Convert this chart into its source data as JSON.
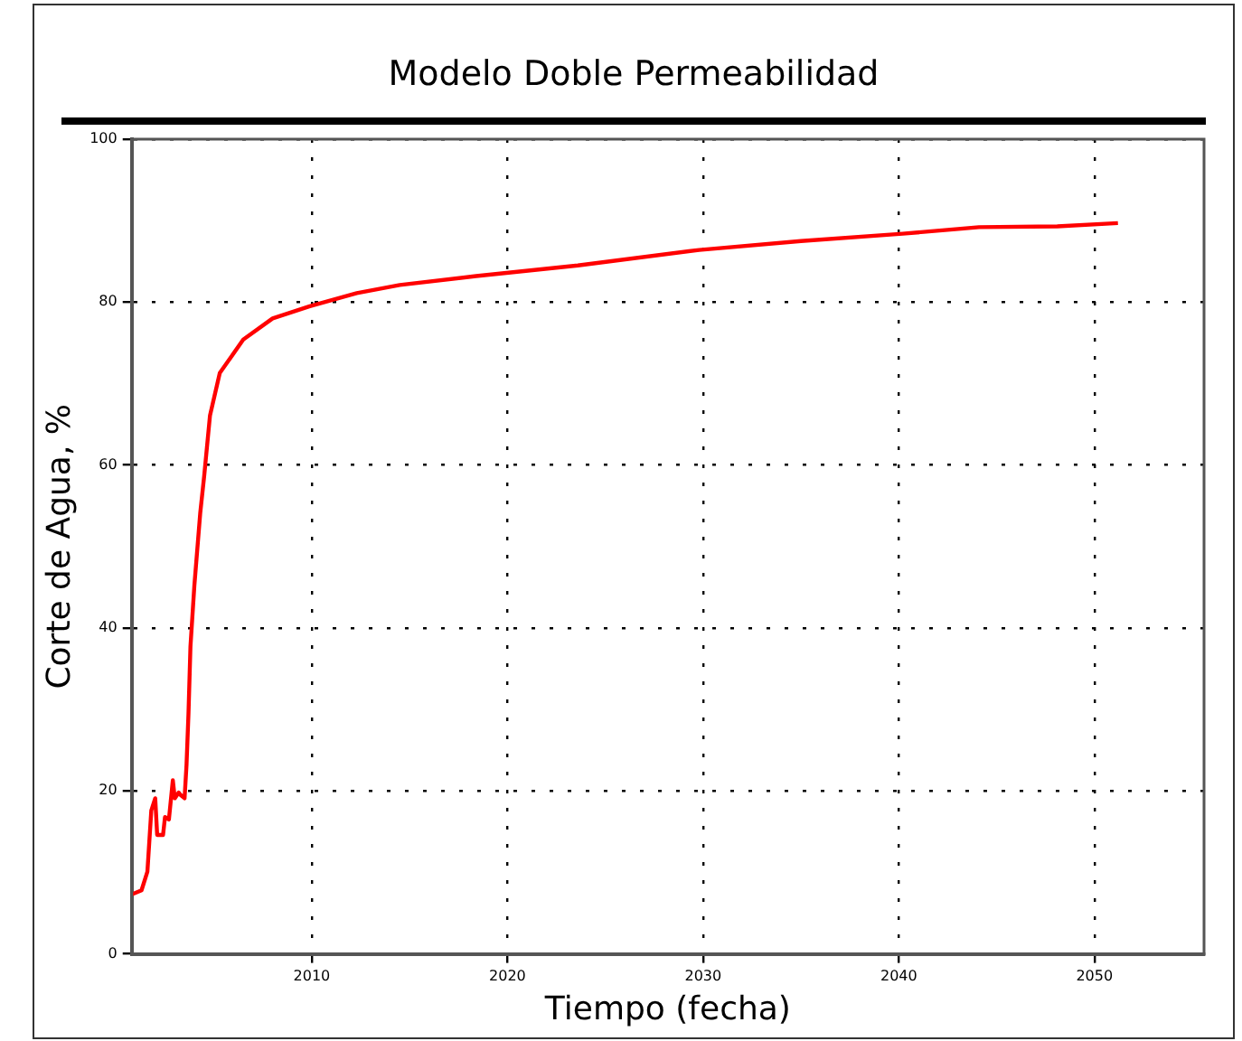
{
  "chart_data": {
    "type": "line",
    "title": "Modelo Doble Permeabilidad",
    "xlabel": "Tiempo (fecha)",
    "ylabel": "Corte de Agua, %",
    "x": [
      2000.8,
      2001.3,
      2001.6,
      2001.8,
      2002.0,
      2002.1,
      2002.4,
      2002.5,
      2002.7,
      2002.9,
      2003.0,
      2003.2,
      2003.3,
      2003.5,
      2003.6,
      2003.7,
      2003.8,
      2004.0,
      2004.3,
      2004.5,
      2004.8,
      2005.3,
      2006.5,
      2008.0,
      2009.9,
      2012.3,
      2014.5,
      2018.4,
      2023.6,
      2029.8,
      2035.0,
      2040.2,
      2044.1,
      2048.1,
      2051.2
    ],
    "series": [
      {
        "color": "#ff0000",
        "values": [
          7.3,
          7.8,
          10.1,
          17.6,
          19.1,
          14.6,
          14.6,
          16.8,
          16.5,
          21.3,
          19.1,
          19.8,
          19.5,
          19.1,
          23.2,
          29.5,
          37.7,
          45.2,
          54.1,
          58.6,
          66.1,
          71.3,
          75.4,
          78.0,
          79.5,
          81.1,
          82.1,
          83.2,
          84.5,
          86.4,
          87.5,
          88.4,
          89.2,
          89.3,
          89.7
        ]
      }
    ],
    "xlim": [
      2000.8,
      2055.6
    ],
    "xticks": [
      2010,
      2020,
      2030,
      2040,
      2050
    ],
    "ylim": [
      0,
      100
    ],
    "yticks": [
      0,
      20,
      40,
      60,
      80,
      100
    ],
    "grid": true,
    "legend": false,
    "marker": "none",
    "line_style": "solid"
  }
}
